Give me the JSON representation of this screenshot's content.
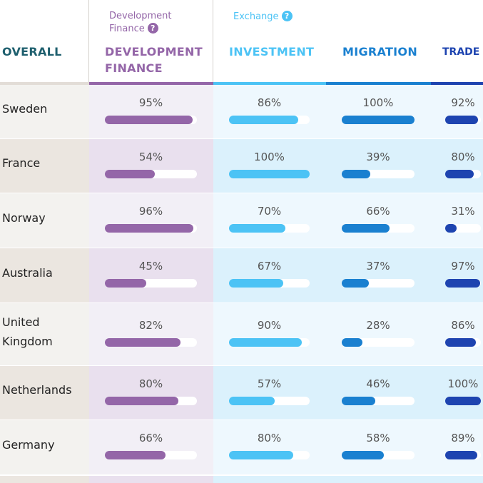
{
  "header": {
    "groups": [
      {
        "label": "Development Finance",
        "help_icon": "question-icon",
        "color": "#9466a8"
      },
      {
        "label": "Exchange",
        "help_icon": "question-icon",
        "color": "#4cc3f5"
      }
    ],
    "columns": [
      {
        "label": "OVERALL",
        "color": "#1e5f6e"
      },
      {
        "label": "DEVELOPMENT FINANCE",
        "color": "#9466a8"
      },
      {
        "label": "INVESTMENT",
        "color": "#4cc3f5"
      },
      {
        "label": "MIGRATION",
        "color": "#1a80d0"
      },
      {
        "label": "TRADE",
        "color": "#1e44b0"
      }
    ]
  },
  "rows": [
    {
      "country": "Sweden",
      "dev": 95,
      "inv": 86,
      "mig": 100,
      "trade": 92
    },
    {
      "country": "France",
      "dev": 54,
      "inv": 100,
      "mig": 39,
      "trade": 80
    },
    {
      "country": "Norway",
      "dev": 96,
      "inv": 70,
      "mig": 66,
      "trade": 31
    },
    {
      "country": "Australia",
      "dev": 45,
      "inv": 67,
      "mig": 37,
      "trade": 97
    },
    {
      "country": "United Kingdom",
      "dev": 82,
      "inv": 90,
      "mig": 28,
      "trade": 86
    },
    {
      "country": "Netherlands",
      "dev": 80,
      "inv": 57,
      "mig": 46,
      "trade": 100
    },
    {
      "country": "Germany",
      "dev": 66,
      "inv": 80,
      "mig": 58,
      "trade": 89
    }
  ]
}
